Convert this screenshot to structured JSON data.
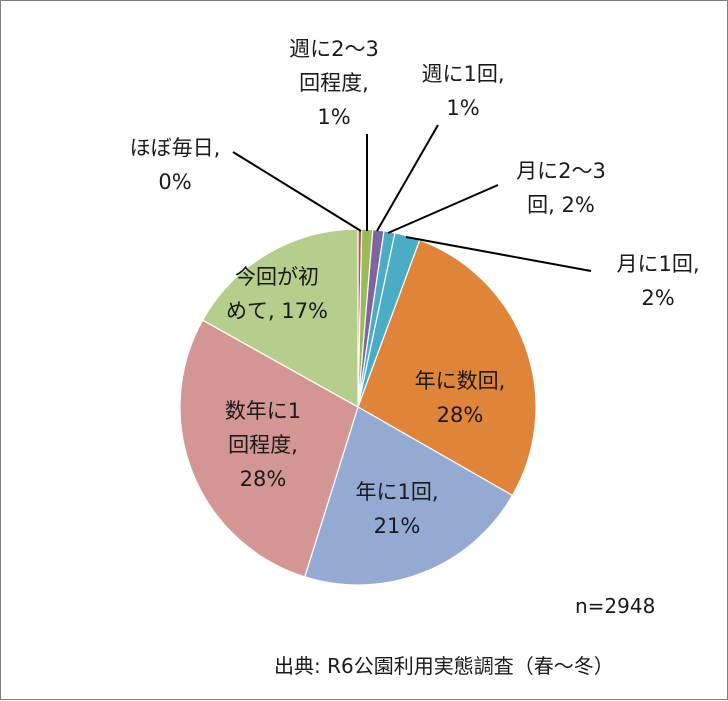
{
  "chart_data": {
    "type": "pie",
    "sample_size_label": "n=2948",
    "source_label": "出典: R6公園利用実態調査（春～冬）",
    "slices": [
      {
        "category": "ほぼ毎日",
        "percent": 0,
        "color": "#C0504D",
        "label_lines": [
          "ほぼ毎日,",
          "0%"
        ]
      },
      {
        "category": "週に2～3回程度",
        "percent": 1,
        "color": "#9BBB59",
        "label_lines": [
          "週に2～3",
          "回程度,",
          "1%"
        ]
      },
      {
        "category": "週に1回",
        "percent": 1,
        "color": "#8064A2",
        "label_lines": [
          "週に1回,",
          "1%"
        ]
      },
      {
        "category": "月に2～3回",
        "percent": 2,
        "color": "#4BACC6",
        "label_lines": [
          "月に2～3",
          "回, 2%"
        ]
      },
      {
        "category": "月に1回",
        "percent": 2,
        "color": "#4BACC6",
        "label_lines": [
          "月に1回,",
          "2%"
        ]
      },
      {
        "category": "年に数回",
        "percent": 28,
        "color": "#E0843A",
        "label_lines": [
          "年に数回,",
          "28%"
        ]
      },
      {
        "category": "年に1回",
        "percent": 21,
        "color": "#95AAD3",
        "label_lines": [
          "年に1回,",
          "21%"
        ]
      },
      {
        "category": "数年に1回程度",
        "percent": 28,
        "color": "#D49694",
        "label_lines": [
          "数年に1",
          "回程度,",
          "28%"
        ]
      },
      {
        "category": "今回が初めて",
        "percent": 17,
        "color": "#B6CE8C",
        "label_lines": [
          "今回が初",
          "めて, 17%"
        ]
      }
    ]
  }
}
